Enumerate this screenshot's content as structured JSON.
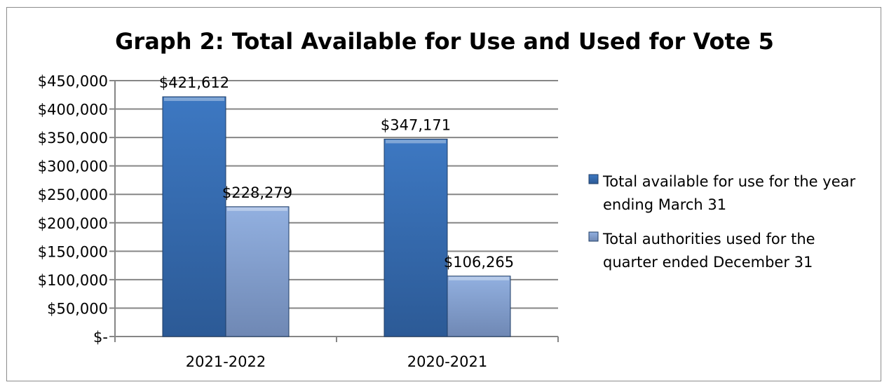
{
  "chart_data": {
    "type": "bar",
    "title": "Graph 2: Total Available for Use and Used for Vote 5",
    "categories": [
      "2021-2022",
      "2020-2021"
    ],
    "series": [
      {
        "name": "Total available for use for the year ending March 31",
        "name_lines": [
          "Total available for use for the year",
          "ending March 31"
        ],
        "values": [
          421612,
          347171
        ],
        "labels": [
          "$421,612",
          "$347,171"
        ],
        "color": "#3a70b8"
      },
      {
        "name": "Total authorities used for the quarter ended December 31",
        "name_lines": [
          "Total authorities used for the",
          "quarter ended December 31"
        ],
        "values": [
          228279,
          106265
        ],
        "labels": [
          "$228,279",
          "$106,265"
        ],
        "color": "#8aa8d8"
      }
    ],
    "yticks": [
      0,
      50000,
      100000,
      150000,
      200000,
      250000,
      300000,
      350000,
      400000,
      450000
    ],
    "ytick_labels": [
      "$-",
      "$50,000",
      "$100,000",
      "$150,000",
      "$200,000",
      "$250,000",
      "$300,000",
      "$350,000",
      "$400,000",
      "$450,000"
    ],
    "ylim": [
      0,
      450000
    ],
    "grid": true,
    "legend": "right"
  }
}
